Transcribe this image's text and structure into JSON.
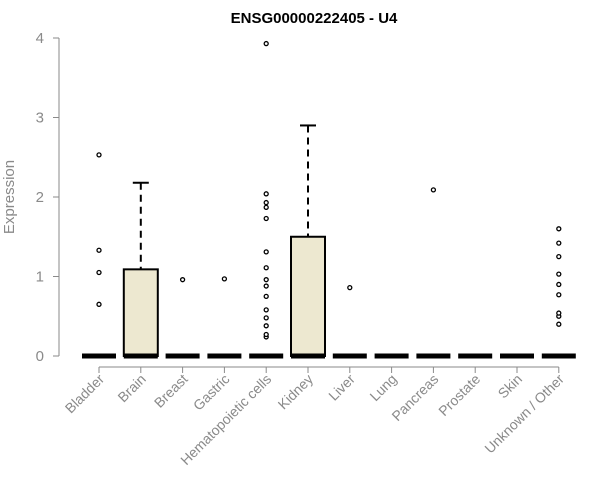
{
  "chart_data": {
    "type": "boxplot",
    "title": "ENSG00000222405 - U4",
    "xlabel": "",
    "ylabel": "Expression",
    "ylim": [
      0,
      4
    ],
    "yticks": [
      "0",
      "1",
      "2",
      "3",
      "4"
    ],
    "box_fill": "#ede8d0",
    "categories": [
      "Bladder",
      "Brain",
      "Breast",
      "Gastric",
      "Hematopoietic cells",
      "Kidney",
      "Liver",
      "Lung",
      "Pancreas",
      "Prostate",
      "Skin",
      "Unknown / Other"
    ],
    "boxes": [
      {
        "category": "Bladder",
        "q1": 0,
        "median": 0,
        "q3": 0,
        "whisker_high": 0,
        "outliers": [
          0.65,
          1.05,
          1.33,
          2.53
        ]
      },
      {
        "category": "Brain",
        "q1": 0,
        "median": 0,
        "q3": 1.09,
        "whisker_high": 2.18,
        "outliers": []
      },
      {
        "category": "Breast",
        "q1": 0,
        "median": 0,
        "q3": 0,
        "whisker_high": 0,
        "outliers": [
          0.96
        ]
      },
      {
        "category": "Gastric",
        "q1": 0,
        "median": 0,
        "q3": 0,
        "whisker_high": 0,
        "outliers": [
          0.97
        ]
      },
      {
        "category": "Hematopoietic cells",
        "q1": 0,
        "median": 0,
        "q3": 0,
        "whisker_high": 0,
        "outliers": [
          0.24,
          0.27,
          0.38,
          0.48,
          0.58,
          0.75,
          0.88,
          0.96,
          1.11,
          1.31,
          1.73,
          1.87,
          1.93,
          2.04,
          3.93
        ]
      },
      {
        "category": "Kidney",
        "q1": 0,
        "median": 0,
        "q3": 1.5,
        "whisker_high": 2.9,
        "outliers": []
      },
      {
        "category": "Liver",
        "q1": 0,
        "median": 0,
        "q3": 0,
        "whisker_high": 0,
        "outliers": [
          0.86
        ]
      },
      {
        "category": "Lung",
        "q1": 0,
        "median": 0,
        "q3": 0,
        "whisker_high": 0,
        "outliers": []
      },
      {
        "category": "Pancreas",
        "q1": 0,
        "median": 0,
        "q3": 0,
        "whisker_high": 0,
        "outliers": [
          2.09
        ]
      },
      {
        "category": "Prostate",
        "q1": 0,
        "median": 0,
        "q3": 0,
        "whisker_high": 0,
        "outliers": []
      },
      {
        "category": "Skin",
        "q1": 0,
        "median": 0,
        "q3": 0,
        "whisker_high": 0,
        "outliers": []
      },
      {
        "category": "Unknown / Other",
        "q1": 0,
        "median": 0,
        "q3": 0,
        "whisker_high": 0,
        "outliers": [
          0.4,
          0.5,
          0.54,
          0.77,
          0.9,
          1.03,
          1.25,
          1.42,
          1.6
        ]
      }
    ]
  }
}
